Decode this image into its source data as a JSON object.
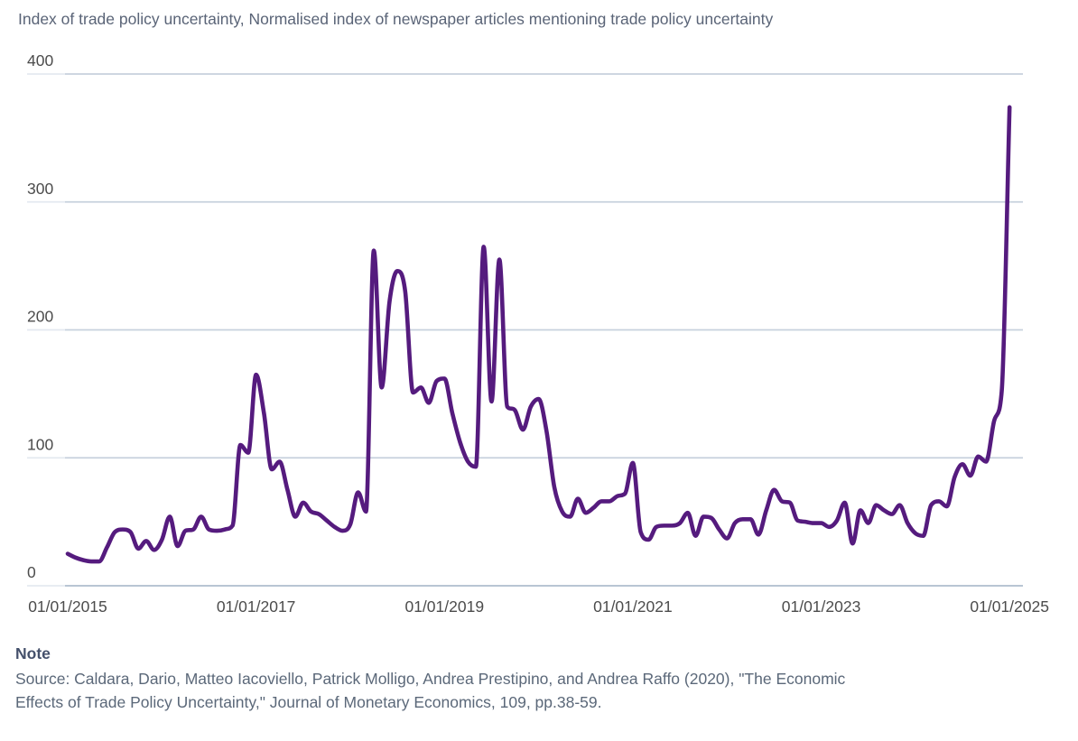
{
  "page": {
    "title": "Index of trade policy uncertainty, Normalised index of newspaper articles mentioning trade policy uncertainty"
  },
  "note": {
    "heading": "Note",
    "source_lines": [
      "Source: Caldara, Dario, Matteo Iacoviello, Patrick Molligo, Andrea Prestipino, and Andrea Raffo (2020), \"The Economic",
      "Effects of Trade Policy Uncertainty,\" Journal of Monetary Economics, 109, pp.38-59."
    ]
  },
  "chart_data": {
    "type": "line",
    "title": "Index of trade policy uncertainty",
    "subtitle": "Normalised index of newspaper articles mentioning trade policy uncertainty",
    "frequency": "monthly",
    "x_start": "01/01/2015",
    "x_end": "01/01/2025",
    "ylim": [
      0,
      400
    ],
    "y_ticks": [
      0,
      100,
      200,
      300,
      400
    ],
    "x_ticks": [
      {
        "label": "01/01/2015",
        "month_index": 0
      },
      {
        "label": "01/01/2017",
        "month_index": 24
      },
      {
        "label": "01/01/2019",
        "month_index": 48
      },
      {
        "label": "01/01/2021",
        "month_index": 72
      },
      {
        "label": "01/01/2023",
        "month_index": 96
      },
      {
        "label": "01/01/2025",
        "month_index": 120
      }
    ],
    "grid": "horizontal",
    "legend": "none",
    "line_color": "#551b7e",
    "gridline_color": "#c7d1dd",
    "baseline_color": "#aebdcd",
    "tick_label_color": "#4c4c4c",
    "values": [
      25,
      22,
      20,
      19,
      19,
      30,
      42,
      44,
      42,
      29,
      35,
      28,
      36,
      54,
      31,
      43,
      44,
      54,
      44,
      43,
      44,
      47,
      110,
      104,
      165,
      135,
      91,
      97,
      75,
      54,
      65,
      58,
      56,
      51,
      46,
      43,
      48,
      73,
      58,
      262,
      155,
      222,
      246,
      230,
      151,
      155,
      143,
      160,
      162,
      135,
      112,
      97,
      93,
      265,
      144,
      255,
      140,
      137,
      122,
      140,
      146,
      121,
      77,
      58,
      54,
      68,
      57,
      61,
      66,
      66,
      70,
      72,
      96,
      42,
      36,
      46,
      47,
      47,
      49,
      57,
      39,
      54,
      53,
      44,
      37,
      49,
      52,
      52,
      40,
      59,
      75,
      66,
      65,
      51,
      50,
      49,
      49,
      46,
      51,
      65,
      33,
      59,
      49,
      63,
      59,
      56,
      63,
      49,
      41,
      39,
      63,
      66,
      62,
      85,
      95,
      86,
      101,
      97,
      128,
      152,
      374
    ]
  }
}
